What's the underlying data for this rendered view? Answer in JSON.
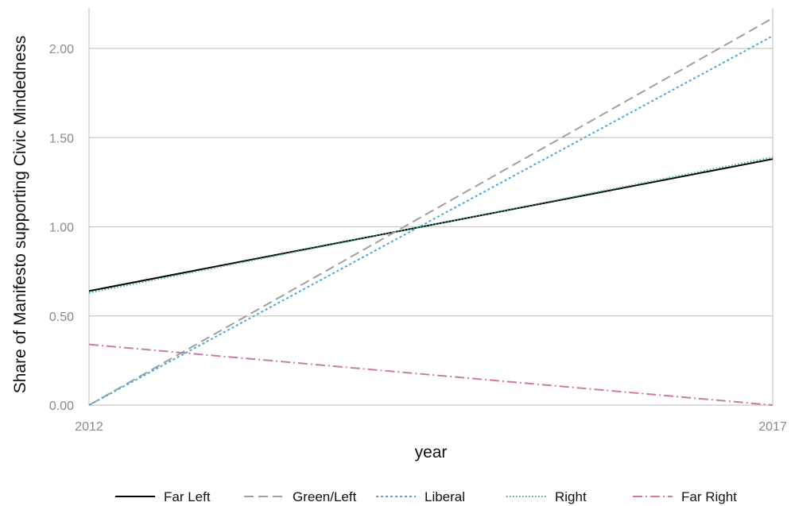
{
  "chart_data": {
    "type": "line",
    "title": "",
    "xlabel": "year",
    "ylabel": "Share of Manifesto supporting Civic Mindedness",
    "x": [
      2012,
      2017
    ],
    "xticks": [
      "2012",
      "2017"
    ],
    "yticks": [
      "0.00",
      "0.50",
      "1.00",
      "1.50",
      "2.00"
    ],
    "ylim": [
      0,
      2.2
    ],
    "grid": true,
    "legend_position": "bottom",
    "series": [
      {
        "name": "Far Left",
        "values": [
          0.64,
          1.38
        ],
        "color": "#000000",
        "dash": "solid"
      },
      {
        "name": "Green/Left",
        "values": [
          0.0,
          2.17
        ],
        "color": "#a0a0a0",
        "dash": "dashed"
      },
      {
        "name": "Liberal",
        "values": [
          0.0,
          2.07
        ],
        "color": "#4aa8d8",
        "dash": "dotted"
      },
      {
        "name": "Right",
        "values": [
          0.63,
          1.39
        ],
        "color": "#3aaa8a",
        "dash": "fine-dotted"
      },
      {
        "name": "Far Right",
        "values": [
          0.34,
          0.0
        ],
        "color": "#cc79a7",
        "dash": "dashdot"
      }
    ]
  }
}
